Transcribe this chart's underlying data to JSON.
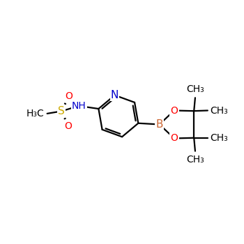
{
  "bg_color": "#ffffff",
  "atom_colors": {
    "C": "#000000",
    "N": "#0000cc",
    "O": "#ff0000",
    "S": "#ccaa00",
    "B": "#cc6633",
    "H": "#0000cc"
  },
  "bond_color": "#000000",
  "bond_width": 1.6,
  "font_size": 10,
  "figsize": [
    3.5,
    3.5
  ],
  "dpi": 100,
  "xlim": [
    0,
    10
  ],
  "ylim": [
    0,
    10
  ]
}
